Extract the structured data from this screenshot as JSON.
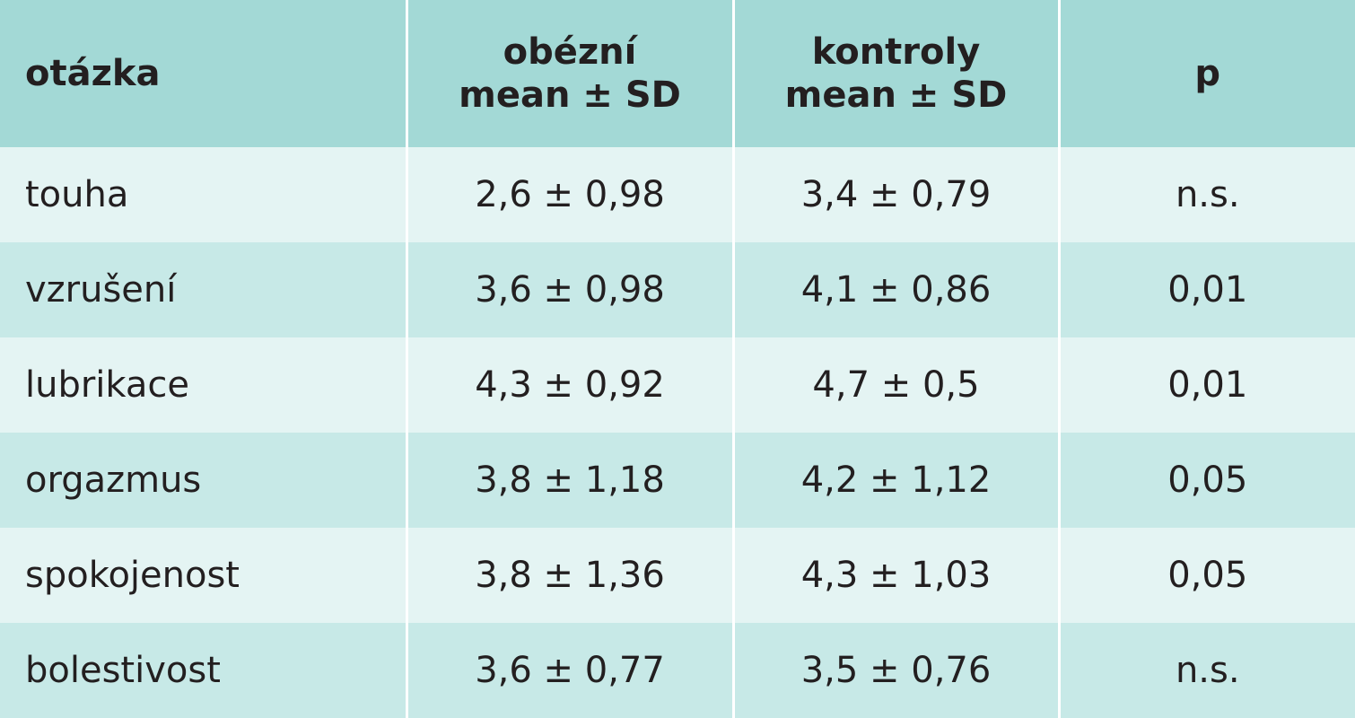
{
  "headers": {
    "question": "otázka",
    "obese_line1": "obézní",
    "obese_line2": "mean ± SD",
    "control_line1": "kontroly",
    "control_line2": "mean ± SD",
    "p": "p"
  },
  "rows": [
    {
      "question": "touha",
      "obese": "2,6 ± 0,98",
      "control": "3,4 ± 0,79",
      "p": "n.s."
    },
    {
      "question": "vzrušení",
      "obese": "3,6 ± 0,98",
      "control": "4,1 ± 0,86",
      "p": "0,01"
    },
    {
      "question": "lubrikace",
      "obese": "4,3 ± 0,92",
      "control": "4,7 ± 0,5",
      "p": "0,01"
    },
    {
      "question": "orgazmus",
      "obese": "3,8 ± 1,18",
      "control": "4,2 ± 1,12",
      "p": "0,05"
    },
    {
      "question": "spokojenost",
      "obese": "3,8 ± 1,36",
      "control": "4,3 ± 1,03",
      "p": "0,05"
    },
    {
      "question": "bolestivost",
      "obese": "3,6 ± 0,77",
      "control": "3,5 ±  0,76",
      "p": "n.s."
    }
  ],
  "colors": {
    "header_bg": "#a3d9d6",
    "row_light": "#e4f4f3",
    "row_dark": "#c7e9e7",
    "text": "#231f20"
  }
}
